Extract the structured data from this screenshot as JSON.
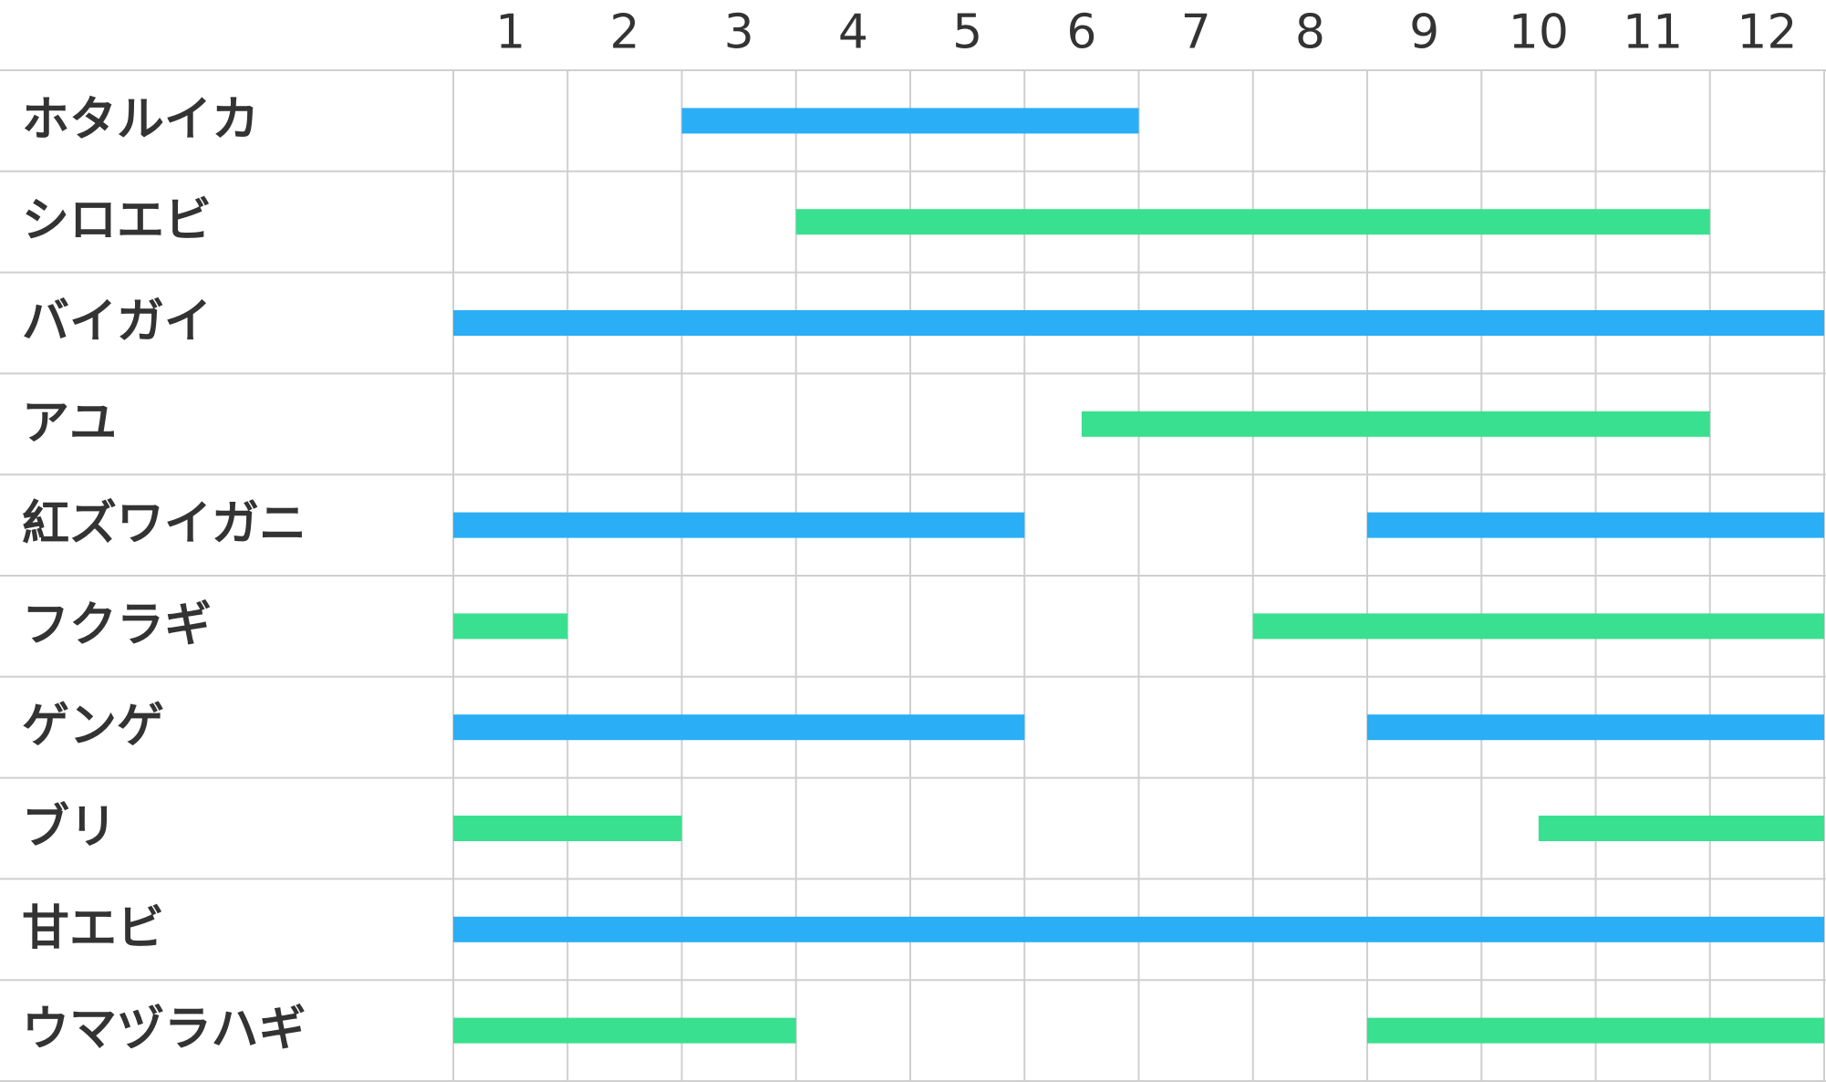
{
  "chart_data": {
    "type": "range_bar",
    "months": [
      "1",
      "2",
      "3",
      "4",
      "5",
      "6",
      "7",
      "8",
      "9",
      "10",
      "11",
      "12"
    ],
    "xlim": [
      0,
      12
    ],
    "xticks": [
      0,
      1,
      2,
      3,
      4,
      5,
      6,
      7,
      8,
      9,
      10,
      11,
      12
    ],
    "grid": true,
    "rows": [
      {
        "name": "ホタルイカ",
        "color": "#2aaef5",
        "ranges": [
          [
            2,
            6
          ]
        ]
      },
      {
        "name": "シロエビ",
        "color": "#38e08f",
        "ranges": [
          [
            3,
            11
          ]
        ]
      },
      {
        "name": "バイガイ",
        "color": "#2aaef5",
        "ranges": [
          [
            0,
            12
          ]
        ]
      },
      {
        "name": "アユ",
        "color": "#38e08f",
        "ranges": [
          [
            5.5,
            11
          ]
        ]
      },
      {
        "name": "紅ズワイガニ",
        "color": "#2aaef5",
        "ranges": [
          [
            0,
            5
          ],
          [
            8,
            12
          ]
        ]
      },
      {
        "name": "フクラギ",
        "color": "#38e08f",
        "ranges": [
          [
            0,
            1
          ],
          [
            7,
            12
          ]
        ]
      },
      {
        "name": "ゲンゲ",
        "color": "#2aaef5",
        "ranges": [
          [
            0,
            5
          ],
          [
            8,
            12
          ]
        ]
      },
      {
        "name": "ブリ",
        "color": "#38e08f",
        "ranges": [
          [
            0,
            2
          ],
          [
            9.5,
            12
          ]
        ]
      },
      {
        "name": "甘エビ",
        "color": "#2aaef5",
        "ranges": [
          [
            0,
            12
          ]
        ]
      },
      {
        "name": "ウマヅラハギ",
        "color": "#38e08f",
        "ranges": [
          [
            0,
            3
          ],
          [
            8,
            12
          ]
        ]
      }
    ]
  }
}
